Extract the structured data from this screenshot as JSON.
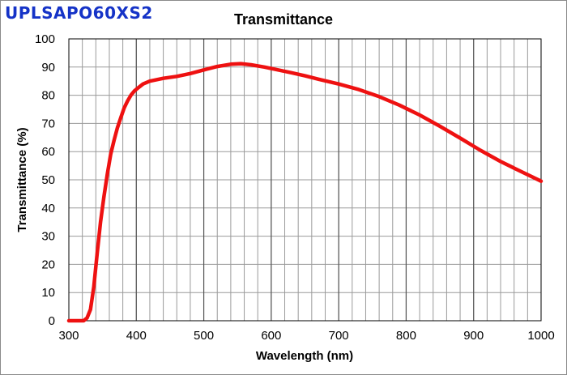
{
  "header": {
    "product_name": "UPLSAPO60XS2"
  },
  "chart_data": {
    "type": "line",
    "title": "Transmittance",
    "xlabel": "Wavelength (nm)",
    "ylabel": "Transmittance (%)",
    "xlim": [
      300,
      1000
    ],
    "ylim": [
      0,
      100
    ],
    "x_ticks": [
      300,
      400,
      500,
      600,
      700,
      800,
      900,
      1000
    ],
    "y_ticks": [
      0,
      10,
      20,
      30,
      40,
      50,
      60,
      70,
      80,
      90,
      100
    ],
    "x_minor_step": 20,
    "grid": true,
    "series": [
      {
        "name": "Transmittance",
        "color": "#ee1111",
        "x": [
          300,
          315,
          322,
          327,
          332,
          337,
          342,
          347,
          352,
          357,
          362,
          367,
          372,
          377,
          382,
          387,
          392,
          397,
          402,
          410,
          420,
          440,
          460,
          480,
          500,
          520,
          540,
          555,
          570,
          590,
          610,
          630,
          650,
          670,
          700,
          730,
          760,
          790,
          820,
          850,
          880,
          910,
          940,
          970,
          1000
        ],
        "y": [
          0,
          0,
          0,
          1,
          4,
          12,
          24,
          35,
          44,
          52,
          59,
          64,
          68.5,
          72,
          75.5,
          78,
          80,
          81.5,
          82.5,
          84,
          85,
          86,
          86.7,
          87.7,
          89,
          90.2,
          91,
          91.2,
          90.8,
          90,
          89,
          88,
          86.9,
          85.7,
          84,
          82,
          79.5,
          76.5,
          73,
          69,
          64.8,
          60.5,
          56.5,
          53,
          49.5
        ]
      }
    ]
  }
}
